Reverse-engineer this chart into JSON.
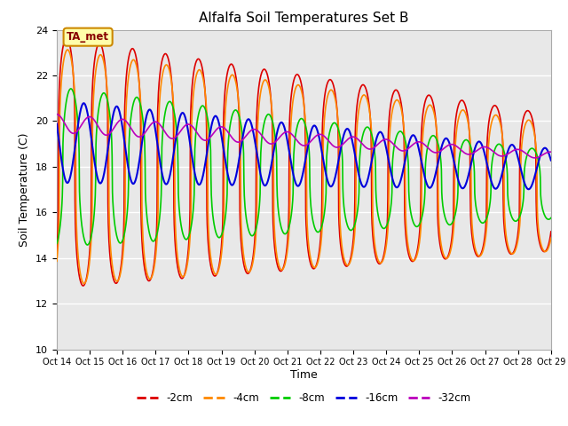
{
  "title": "Alfalfa Soil Temperatures Set B",
  "xlabel": "Time",
  "ylabel": "Soil Temperature (C)",
  "xlim": [
    0,
    15
  ],
  "ylim": [
    10,
    24
  ],
  "yticks": [
    10,
    12,
    14,
    16,
    18,
    20,
    22,
    24
  ],
  "xtick_labels": [
    "Oct 14",
    "Oct 15",
    "Oct 16",
    "Oct 17",
    "Oct 18",
    "Oct 19",
    "Oct 20",
    "Oct 21",
    "Oct 22",
    "Oct 23",
    "Oct 24",
    "Oct 25",
    "Oct 26",
    "Oct 27",
    "Oct 28",
    "Oct 29"
  ],
  "fig_bg_color": "#ffffff",
  "plot_bg_color": "#e8e8e8",
  "annotation_text": "TA_met",
  "colors": {
    "-2cm": "#dd0000",
    "-4cm": "#ff8800",
    "-8cm": "#00cc00",
    "-16cm": "#0000dd",
    "-32cm": "#bb00bb"
  },
  "lw": 1.2
}
